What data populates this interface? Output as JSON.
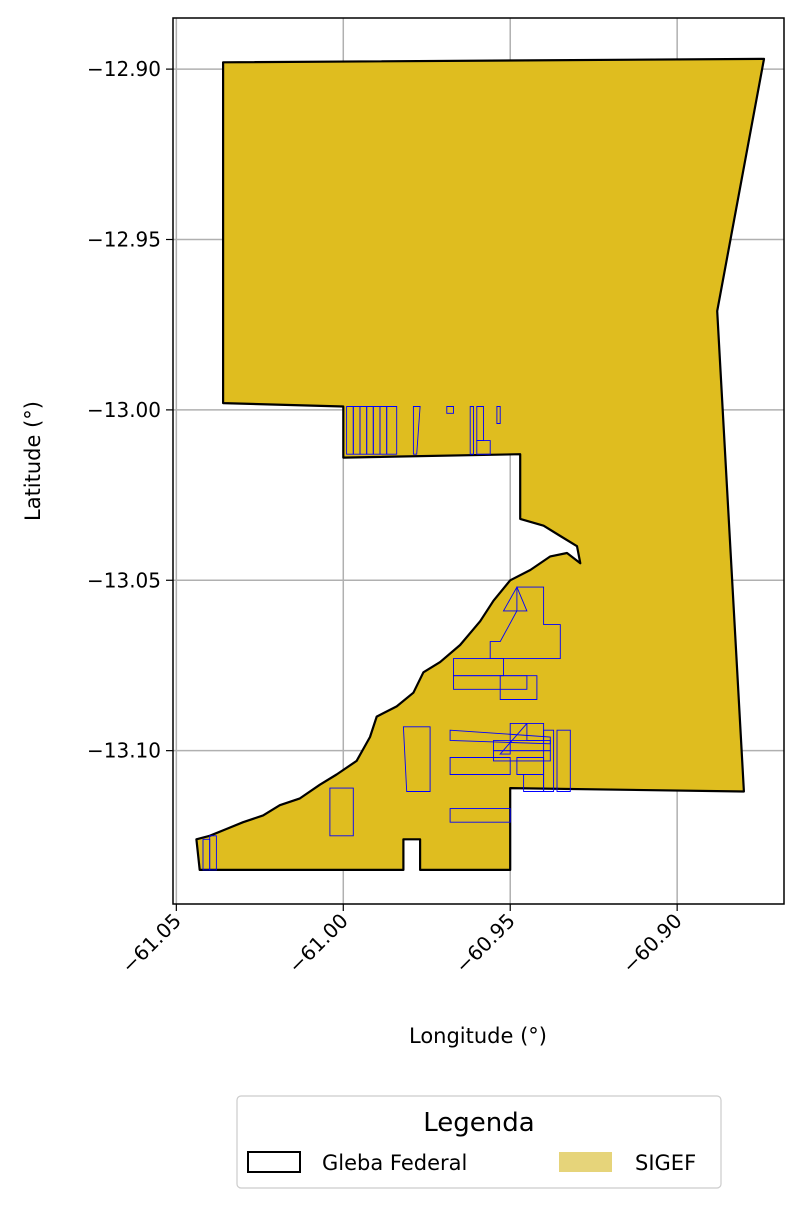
{
  "chart_data": {
    "type": "map",
    "xlabel": "Longitude (°)",
    "ylabel": "Latitude (°)",
    "xlim": [
      -61.051,
      -60.868
    ],
    "ylim": [
      -13.145,
      -12.885
    ],
    "grid": true,
    "x_ticks": [
      {
        "value": -61.05,
        "label": "−61.05"
      },
      {
        "value": -61.0,
        "label": "−61.00"
      },
      {
        "value": -60.95,
        "label": "−60.95"
      },
      {
        "value": -60.9,
        "label": "−60.90"
      }
    ],
    "y_ticks": [
      {
        "value": -12.9,
        "label": "−12.90"
      },
      {
        "value": -12.95,
        "label": "−12.95"
      },
      {
        "value": -13.0,
        "label": "−13.00"
      },
      {
        "value": -13.05,
        "label": "−13.05"
      },
      {
        "value": -13.1,
        "label": "−13.10"
      }
    ],
    "legend": {
      "title": "Legenda",
      "placement": "bottom-center",
      "items": [
        {
          "label": "Gleba Federal",
          "style": "outline",
          "edge": "#000000"
        },
        {
          "label": "SIGEF",
          "style": "fill",
          "fill": "#E6D47A"
        }
      ]
    },
    "colors": {
      "gleba_fill": "#DFBD1F",
      "gleba_edge": "#000000",
      "sigef_edge": "#0000FF",
      "grid": "#B0B0B0"
    },
    "gleba_polygon": [
      [
        -61.036,
        -12.898
      ],
      [
        -60.874,
        -12.897
      ],
      [
        -60.888,
        -12.971
      ],
      [
        -60.88,
        -13.112
      ],
      [
        -60.95,
        -13.111
      ],
      [
        -60.95,
        -13.135
      ],
      [
        -60.977,
        -13.135
      ],
      [
        -60.977,
        -13.126
      ],
      [
        -60.982,
        -13.126
      ],
      [
        -60.982,
        -13.135
      ],
      [
        -61.043,
        -13.135
      ],
      [
        -61.044,
        -13.126
      ],
      [
        -61.04,
        -13.125
      ],
      [
        -61.035,
        -13.123
      ],
      [
        -61.03,
        -13.121
      ],
      [
        -61.024,
        -13.119
      ],
      [
        -61.019,
        -13.116
      ],
      [
        -61.013,
        -13.114
      ],
      [
        -61.007,
        -13.11
      ],
      [
        -61.002,
        -13.107
      ],
      [
        -60.996,
        -13.103
      ],
      [
        -60.992,
        -13.096
      ],
      [
        -60.99,
        -13.09
      ],
      [
        -60.984,
        -13.087
      ],
      [
        -60.979,
        -13.083
      ],
      [
        -60.976,
        -13.077
      ],
      [
        -60.971,
        -13.074
      ],
      [
        -60.965,
        -13.069
      ],
      [
        -60.959,
        -13.062
      ],
      [
        -60.955,
        -13.056
      ],
      [
        -60.95,
        -13.05
      ],
      [
        -60.944,
        -13.047
      ],
      [
        -60.938,
        -13.043
      ],
      [
        -60.933,
        -13.042
      ],
      [
        -60.929,
        -13.045
      ],
      [
        -60.93,
        -13.04
      ],
      [
        -60.935,
        -13.037
      ],
      [
        -60.94,
        -13.034
      ],
      [
        -60.947,
        -13.032
      ],
      [
        -60.947,
        -13.013
      ],
      [
        -61.0,
        -13.014
      ],
      [
        -61.0,
        -12.999
      ],
      [
        -61.036,
        -12.998
      ]
    ],
    "sigef_parcels": [
      [
        [
          -60.999,
          -12.999
        ],
        [
          -60.997,
          -12.999
        ],
        [
          -60.997,
          -13.013
        ],
        [
          -60.999,
          -13.013
        ]
      ],
      [
        [
          -60.997,
          -12.999
        ],
        [
          -60.995,
          -12.999
        ],
        [
          -60.995,
          -13.013
        ],
        [
          -60.997,
          -13.013
        ]
      ],
      [
        [
          -60.995,
          -12.999
        ],
        [
          -60.993,
          -12.999
        ],
        [
          -60.993,
          -13.013
        ],
        [
          -60.995,
          -13.013
        ]
      ],
      [
        [
          -60.993,
          -12.999
        ],
        [
          -60.991,
          -12.999
        ],
        [
          -60.991,
          -13.013
        ],
        [
          -60.993,
          -13.013
        ]
      ],
      [
        [
          -60.991,
          -12.999
        ],
        [
          -60.989,
          -12.999
        ],
        [
          -60.989,
          -13.013
        ],
        [
          -60.991,
          -13.013
        ]
      ],
      [
        [
          -60.989,
          -12.999
        ],
        [
          -60.987,
          -12.999
        ],
        [
          -60.987,
          -13.013
        ],
        [
          -60.989,
          -13.013
        ]
      ],
      [
        [
          -60.987,
          -12.999
        ],
        [
          -60.984,
          -12.999
        ],
        [
          -60.984,
          -13.013
        ],
        [
          -60.987,
          -13.013
        ]
      ],
      [
        [
          -60.979,
          -12.999
        ],
        [
          -60.977,
          -12.999
        ],
        [
          -60.978,
          -13.013
        ],
        [
          -60.979,
          -13.013
        ]
      ],
      [
        [
          -60.969,
          -12.999
        ],
        [
          -60.967,
          -12.999
        ],
        [
          -60.967,
          -13.001
        ],
        [
          -60.969,
          -13.001
        ]
      ],
      [
        [
          -60.962,
          -12.999
        ],
        [
          -60.961,
          -12.999
        ],
        [
          -60.961,
          -13.013
        ],
        [
          -60.962,
          -13.013
        ]
      ],
      [
        [
          -60.96,
          -12.999
        ],
        [
          -60.958,
          -12.999
        ],
        [
          -60.958,
          -13.009
        ],
        [
          -60.96,
          -13.009
        ]
      ],
      [
        [
          -60.96,
          -13.009
        ],
        [
          -60.956,
          -13.009
        ],
        [
          -60.956,
          -13.013
        ],
        [
          -60.96,
          -13.013
        ]
      ],
      [
        [
          -60.954,
          -12.999
        ],
        [
          -60.953,
          -12.999
        ],
        [
          -60.953,
          -13.004
        ],
        [
          -60.954,
          -13.004
        ]
      ],
      [
        [
          -60.948,
          -13.052
        ],
        [
          -60.94,
          -13.052
        ],
        [
          -60.94,
          -13.063
        ],
        [
          -60.935,
          -13.063
        ],
        [
          -60.935,
          -13.073
        ],
        [
          -60.956,
          -13.073
        ],
        [
          -60.956,
          -13.068
        ],
        [
          -60.953,
          -13.068
        ],
        [
          -60.948,
          -13.059
        ]
      ],
      [
        [
          -60.948,
          -13.052
        ],
        [
          -60.945,
          -13.059
        ],
        [
          -60.952,
          -13.059
        ],
        [
          -60.948,
          -13.052
        ]
      ],
      [
        [
          -60.967,
          -13.073
        ],
        [
          -60.952,
          -13.073
        ],
        [
          -60.952,
          -13.078
        ],
        [
          -60.967,
          -13.078
        ]
      ],
      [
        [
          -60.967,
          -13.078
        ],
        [
          -60.945,
          -13.078
        ],
        [
          -60.945,
          -13.082
        ],
        [
          -60.967,
          -13.082
        ]
      ],
      [
        [
          -60.953,
          -13.078
        ],
        [
          -60.942,
          -13.078
        ],
        [
          -60.942,
          -13.085
        ],
        [
          -60.953,
          -13.085
        ]
      ],
      [
        [
          -60.968,
          -13.094
        ],
        [
          -60.938,
          -13.096
        ],
        [
          -60.938,
          -13.098
        ],
        [
          -60.968,
          -13.097
        ]
      ],
      [
        [
          -60.95,
          -13.092
        ],
        [
          -60.945,
          -13.092
        ],
        [
          -60.953,
          -13.101
        ],
        [
          -60.95,
          -13.101
        ]
      ],
      [
        [
          -60.945,
          -13.092
        ],
        [
          -60.94,
          -13.092
        ],
        [
          -60.94,
          -13.097
        ],
        [
          -60.945,
          -13.097
        ]
      ],
      [
        [
          -60.955,
          -13.097
        ],
        [
          -60.938,
          -13.097
        ],
        [
          -60.938,
          -13.1
        ],
        [
          -60.955,
          -13.1
        ]
      ],
      [
        [
          -60.955,
          -13.1
        ],
        [
          -60.938,
          -13.1
        ],
        [
          -60.938,
          -13.103
        ],
        [
          -60.955,
          -13.103
        ]
      ],
      [
        [
          -60.968,
          -13.102
        ],
        [
          -60.95,
          -13.102
        ],
        [
          -60.95,
          -13.107
        ],
        [
          -60.968,
          -13.107
        ]
      ],
      [
        [
          -60.948,
          -13.102
        ],
        [
          -60.94,
          -13.102
        ],
        [
          -60.94,
          -13.107
        ],
        [
          -60.948,
          -13.107
        ]
      ],
      [
        [
          -60.946,
          -13.107
        ],
        [
          -60.94,
          -13.107
        ],
        [
          -60.94,
          -13.112
        ],
        [
          -60.946,
          -13.112
        ]
      ],
      [
        [
          -60.94,
          -13.094
        ],
        [
          -60.937,
          -13.094
        ],
        [
          -60.937,
          -13.112
        ],
        [
          -60.94,
          -13.112
        ]
      ],
      [
        [
          -60.936,
          -13.094
        ],
        [
          -60.932,
          -13.094
        ],
        [
          -60.932,
          -13.112
        ],
        [
          -60.936,
          -13.112
        ]
      ],
      [
        [
          -60.982,
          -13.093
        ],
        [
          -60.974,
          -13.093
        ],
        [
          -60.974,
          -13.112
        ],
        [
          -60.981,
          -13.112
        ]
      ],
      [
        [
          -61.004,
          -13.111
        ],
        [
          -60.997,
          -13.111
        ],
        [
          -60.997,
          -13.125
        ],
        [
          -61.004,
          -13.125
        ]
      ],
      [
        [
          -60.968,
          -13.117
        ],
        [
          -60.95,
          -13.117
        ],
        [
          -60.95,
          -13.121
        ],
        [
          -60.968,
          -13.121
        ]
      ],
      [
        [
          -61.042,
          -13.126
        ],
        [
          -61.04,
          -13.126
        ],
        [
          -61.04,
          -13.135
        ],
        [
          -61.042,
          -13.135
        ]
      ],
      [
        [
          -61.04,
          -13.125
        ],
        [
          -61.038,
          -13.125
        ],
        [
          -61.038,
          -13.135
        ],
        [
          -61.04,
          -13.135
        ]
      ]
    ]
  }
}
